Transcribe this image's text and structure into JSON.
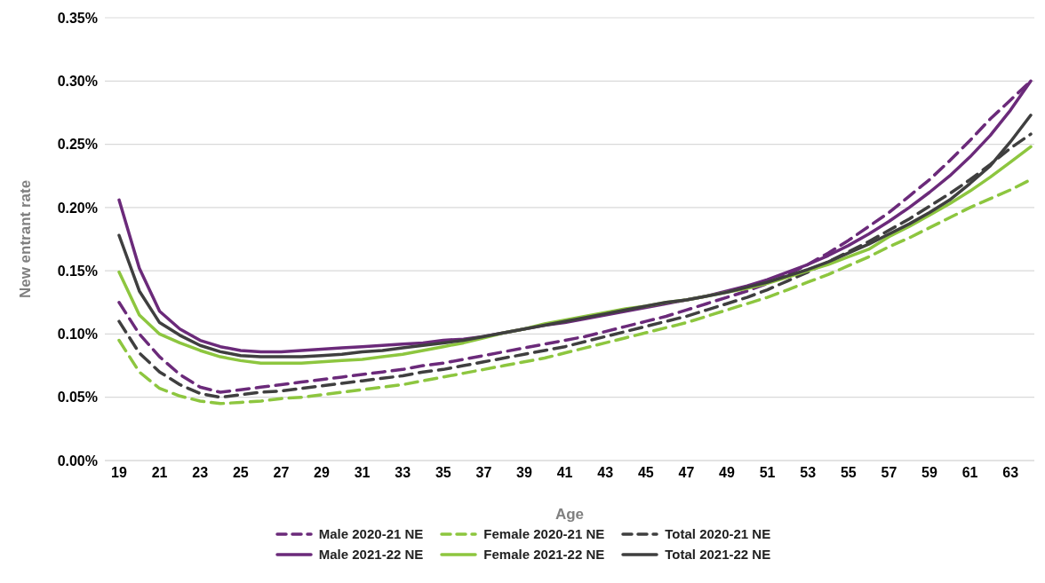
{
  "chart_data": {
    "type": "line",
    "xlabel": "Age",
    "ylabel": "New entrant rate",
    "categories": [
      "19",
      null,
      "21",
      null,
      "23",
      null,
      "25",
      null,
      "27",
      null,
      "29",
      null,
      "31",
      null,
      "33",
      null,
      "35",
      null,
      "37",
      null,
      "39",
      null,
      "41",
      null,
      "43",
      null,
      "45",
      null,
      "47",
      null,
      "49",
      null,
      "51",
      null,
      "53",
      null,
      "55",
      null,
      "57",
      null,
      "59",
      null,
      "61",
      null,
      "63",
      null
    ],
    "ylim": [
      0,
      0.35
    ],
    "yticks": [
      {
        "value": 0,
        "label": "0.00%"
      },
      {
        "value": 0.05,
        "label": "0.05%"
      },
      {
        "value": 0.1,
        "label": "0.10%"
      },
      {
        "value": 0.15,
        "label": "0.15%"
      },
      {
        "value": 0.2,
        "label": "0.20%"
      },
      {
        "value": 0.25,
        "label": "0.25%"
      },
      {
        "value": 0.3,
        "label": "0.30%"
      },
      {
        "value": 0.35,
        "label": "0.35%"
      }
    ],
    "grid": "y",
    "legend": "bottom",
    "marker": "none",
    "series": [
      {
        "name": "Male 2020-21 NE",
        "color": "#6b2a7a",
        "line_style": "dashed",
        "values": [
          0.125,
          0.1,
          0.082,
          0.068,
          0.058,
          0.054,
          0.056,
          0.058,
          0.06,
          0.062,
          0.064,
          0.066,
          0.068,
          0.07,
          0.072,
          0.075,
          0.077,
          0.08,
          0.083,
          0.086,
          0.089,
          0.092,
          0.095,
          0.098,
          0.102,
          0.106,
          0.11,
          0.114,
          0.119,
          0.124,
          0.129,
          0.134,
          0.14,
          0.147,
          0.155,
          0.164,
          0.174,
          0.185,
          0.196,
          0.209,
          0.222,
          0.237,
          0.253,
          0.27,
          0.285,
          0.3
        ]
      },
      {
        "name": "Female 2020-21 NE",
        "color": "#8dc63f",
        "line_style": "dashed",
        "values": [
          0.095,
          0.07,
          0.057,
          0.051,
          0.047,
          0.045,
          0.046,
          0.047,
          0.049,
          0.05,
          0.052,
          0.054,
          0.056,
          0.058,
          0.06,
          0.063,
          0.066,
          0.069,
          0.072,
          0.075,
          0.078,
          0.081,
          0.085,
          0.089,
          0.093,
          0.097,
          0.101,
          0.105,
          0.109,
          0.114,
          0.119,
          0.124,
          0.129,
          0.135,
          0.141,
          0.147,
          0.154,
          0.161,
          0.169,
          0.176,
          0.184,
          0.192,
          0.2,
          0.207,
          0.214,
          0.222
        ]
      },
      {
        "name": "Total 2020-21 NE",
        "color": "#3f3f3f",
        "line_style": "dashed",
        "values": [
          0.11,
          0.085,
          0.07,
          0.06,
          0.053,
          0.05,
          0.052,
          0.054,
          0.055,
          0.057,
          0.059,
          0.061,
          0.063,
          0.065,
          0.067,
          0.07,
          0.072,
          0.075,
          0.078,
          0.081,
          0.084,
          0.087,
          0.09,
          0.094,
          0.098,
          0.102,
          0.106,
          0.11,
          0.114,
          0.119,
          0.124,
          0.129,
          0.135,
          0.142,
          0.149,
          0.157,
          0.165,
          0.173,
          0.182,
          0.191,
          0.201,
          0.211,
          0.222,
          0.234,
          0.247,
          0.258
        ]
      },
      {
        "name": "Male 2021-22 NE",
        "color": "#6b2a7a",
        "line_style": "solid",
        "values": [
          0.206,
          0.152,
          0.118,
          0.104,
          0.095,
          0.09,
          0.087,
          0.086,
          0.086,
          0.087,
          0.088,
          0.089,
          0.09,
          0.091,
          0.092,
          0.093,
          0.095,
          0.096,
          0.098,
          0.101,
          0.104,
          0.107,
          0.109,
          0.112,
          0.115,
          0.118,
          0.121,
          0.124,
          0.127,
          0.13,
          0.134,
          0.138,
          0.143,
          0.149,
          0.155,
          0.162,
          0.17,
          0.179,
          0.189,
          0.2,
          0.212,
          0.225,
          0.24,
          0.257,
          0.277,
          0.3
        ]
      },
      {
        "name": "Female 2021-22 NE",
        "color": "#8dc63f",
        "line_style": "solid",
        "values": [
          0.149,
          0.115,
          0.1,
          0.093,
          0.087,
          0.082,
          0.079,
          0.077,
          0.077,
          0.077,
          0.078,
          0.079,
          0.08,
          0.082,
          0.084,
          0.087,
          0.09,
          0.093,
          0.097,
          0.101,
          0.104,
          0.108,
          0.111,
          0.114,
          0.117,
          0.12,
          0.122,
          0.125,
          0.127,
          0.13,
          0.133,
          0.136,
          0.14,
          0.145,
          0.15,
          0.155,
          0.161,
          0.167,
          0.177,
          0.185,
          0.194,
          0.203,
          0.213,
          0.224,
          0.236,
          0.248
        ]
      },
      {
        "name": "Total 2021-22 NE",
        "color": "#3f3f3f",
        "line_style": "solid",
        "values": [
          0.178,
          0.134,
          0.109,
          0.099,
          0.091,
          0.086,
          0.083,
          0.082,
          0.082,
          0.082,
          0.083,
          0.084,
          0.086,
          0.087,
          0.089,
          0.091,
          0.093,
          0.095,
          0.098,
          0.101,
          0.104,
          0.107,
          0.11,
          0.113,
          0.116,
          0.119,
          0.122,
          0.125,
          0.127,
          0.13,
          0.133,
          0.137,
          0.141,
          0.146,
          0.151,
          0.157,
          0.164,
          0.171,
          0.179,
          0.187,
          0.196,
          0.206,
          0.219,
          0.233,
          0.252,
          0.273
        ]
      }
    ]
  }
}
